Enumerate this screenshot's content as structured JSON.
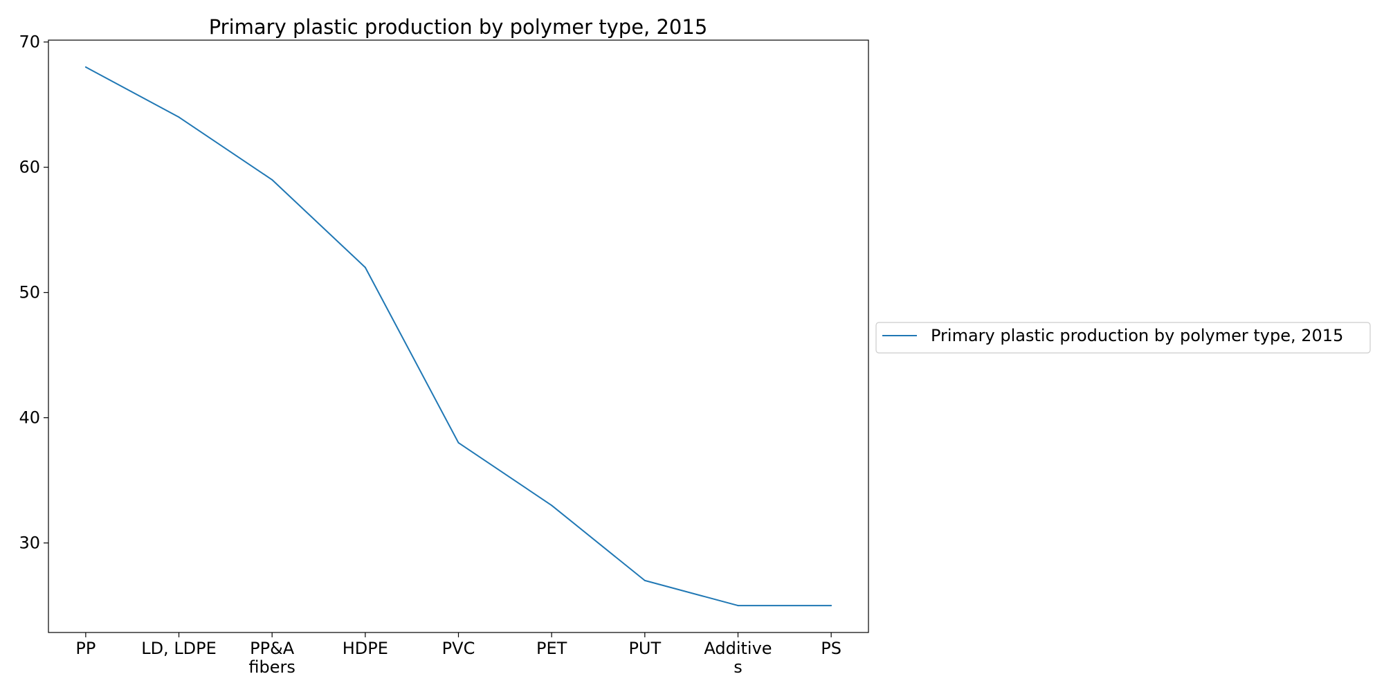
{
  "chart_data": {
    "type": "line",
    "title": "Primary plastic production by polymer type, 2015",
    "xlabel": "",
    "ylabel": "",
    "categories": [
      [
        "PP"
      ],
      [
        "LD, LDPE"
      ],
      [
        "PP&A",
        "fibers"
      ],
      [
        "HDPE"
      ],
      [
        "PVC"
      ],
      [
        "PET"
      ],
      [
        "PUT"
      ],
      [
        "Additive",
        "s"
      ],
      [
        "PS"
      ]
    ],
    "series": [
      {
        "name": "Primary plastic production by polymer type, 2015",
        "values": [
          68,
          64,
          59,
          52,
          38,
          33,
          27,
          25,
          25
        ],
        "color": "#1f77b4"
      }
    ],
    "ylim": [
      22.85,
      70.15
    ],
    "yticks": [
      30,
      40,
      50,
      60,
      70
    ],
    "grid": false,
    "legend_position": "right"
  }
}
